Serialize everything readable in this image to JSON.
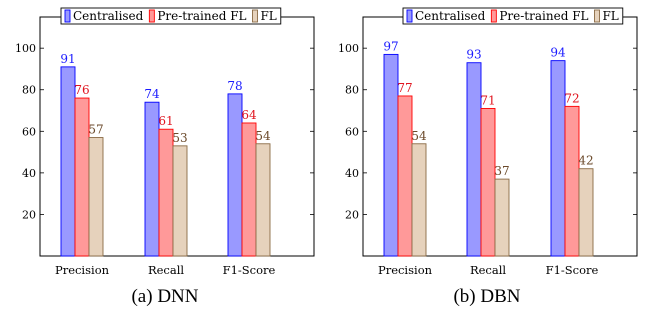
{
  "captions": [
    "(a) DNN",
    "(b) DBN"
  ],
  "legend": [
    "Centralised",
    "Pre-trained FL",
    "FL"
  ],
  "colors": {
    "centralised_fill": "#9999ff",
    "centralised_stroke": "#0000ff",
    "centralised_label": "#1a1aff",
    "pretrained_fill": "#ff9999",
    "pretrained_stroke": "#ff0000",
    "pretrained_label": "#e0141e",
    "fl_fill": "#e6d2bc",
    "fl_stroke": "#8a6a44",
    "fl_label": "#6b4a2b"
  },
  "chart_data": [
    {
      "type": "bar",
      "categories": [
        "Precision",
        "Recall",
        "F1-Score"
      ],
      "series": [
        {
          "name": "Centralised",
          "values": [
            91,
            74,
            78
          ]
        },
        {
          "name": "Pre-trained FL",
          "values": [
            76,
            61,
            64
          ]
        },
        {
          "name": "FL",
          "values": [
            57,
            53,
            54
          ]
        }
      ],
      "yticks": [
        20,
        40,
        60,
        80,
        100
      ],
      "ylim": [
        0,
        115
      ],
      "legend_position": "top",
      "grid": false
    },
    {
      "type": "bar",
      "categories": [
        "Precision",
        "Recall",
        "F1-Score"
      ],
      "series": [
        {
          "name": "Centralised",
          "values": [
            97,
            93,
            94
          ]
        },
        {
          "name": "Pre-trained FL",
          "values": [
            77,
            71,
            72
          ]
        },
        {
          "name": "FL",
          "values": [
            54,
            37,
            42
          ]
        }
      ],
      "yticks": [
        20,
        40,
        60,
        80,
        100
      ],
      "ylim": [
        0,
        115
      ],
      "legend_position": "top",
      "grid": false
    }
  ]
}
